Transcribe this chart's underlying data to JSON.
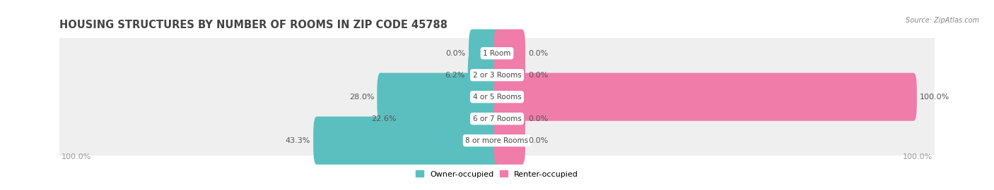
{
  "title": "HOUSING STRUCTURES BY NUMBER OF ROOMS IN ZIP CODE 45788",
  "source": "Source: ZipAtlas.com",
  "categories": [
    "1 Room",
    "2 or 3 Rooms",
    "4 or 5 Rooms",
    "6 or 7 Rooms",
    "8 or more Rooms"
  ],
  "owner_pct": [
    0.0,
    6.2,
    28.0,
    22.6,
    43.3
  ],
  "renter_pct": [
    0.0,
    0.0,
    100.0,
    0.0,
    0.0
  ],
  "owner_color": "#5bbfbf",
  "renter_color": "#f07caa",
  "row_bg_color": "#efefef",
  "max_val": 100.0,
  "bottom_left_label": "100.0%",
  "bottom_right_label": "100.0%",
  "title_fontsize": 10.5,
  "label_fontsize": 8,
  "category_fontsize": 7.5,
  "legend_fontsize": 8
}
